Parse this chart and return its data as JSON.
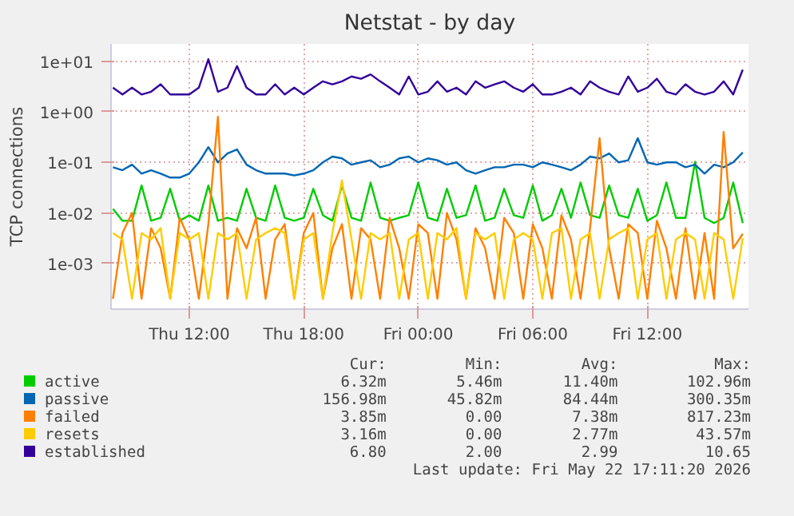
{
  "chart_data": {
    "type": "line",
    "title": "Netstat - by day",
    "ylabel": "TCP connections",
    "log": "y",
    "grid": true,
    "legend": "bottom",
    "xlim": [
      "2026-05-21T07:54",
      "2026-05-22T17:18"
    ],
    "ylim": [
      0.000125,
      22
    ],
    "xticks": [
      {
        "value": "2026-05-21T12:00",
        "label": "Thu 12:00"
      },
      {
        "value": "2026-05-21T18:00",
        "label": "Thu 18:00"
      },
      {
        "value": "2026-05-22T00:00",
        "label": "Fri 00:00"
      },
      {
        "value": "2026-05-22T06:00",
        "label": "Fri 06:00"
      },
      {
        "value": "2026-05-22T12:00",
        "label": "Fri 12:00"
      }
    ],
    "yticks": [
      {
        "value": 0.001,
        "label": "1e-03"
      },
      {
        "value": 0.01,
        "label": "1e-02"
      },
      {
        "value": 0.1,
        "label": "1e-01"
      },
      {
        "value": 1,
        "label": "1e+00"
      },
      {
        "value": 10,
        "label": "1e+01"
      }
    ],
    "x": [
      "2026-05-21T08:00",
      "2026-05-21T08:30",
      "2026-05-21T09:00",
      "2026-05-21T09:30",
      "2026-05-21T10:00",
      "2026-05-21T10:30",
      "2026-05-21T11:00",
      "2026-05-21T11:30",
      "2026-05-21T12:00",
      "2026-05-21T12:30",
      "2026-05-21T13:00",
      "2026-05-21T13:30",
      "2026-05-21T14:00",
      "2026-05-21T14:30",
      "2026-05-21T15:00",
      "2026-05-21T15:30",
      "2026-05-21T16:00",
      "2026-05-21T16:30",
      "2026-05-21T17:00",
      "2026-05-21T17:30",
      "2026-05-21T18:00",
      "2026-05-21T18:30",
      "2026-05-21T19:00",
      "2026-05-21T19:30",
      "2026-05-21T20:00",
      "2026-05-21T20:30",
      "2026-05-21T21:00",
      "2026-05-21T21:30",
      "2026-05-21T22:00",
      "2026-05-21T22:30",
      "2026-05-21T23:00",
      "2026-05-21T23:30",
      "2026-05-22T00:00",
      "2026-05-22T00:30",
      "2026-05-22T01:00",
      "2026-05-22T01:30",
      "2026-05-22T02:00",
      "2026-05-22T02:30",
      "2026-05-22T03:00",
      "2026-05-22T03:30",
      "2026-05-22T04:00",
      "2026-05-22T04:30",
      "2026-05-22T05:00",
      "2026-05-22T05:30",
      "2026-05-22T06:00",
      "2026-05-22T06:30",
      "2026-05-22T07:00",
      "2026-05-22T07:30",
      "2026-05-22T08:00",
      "2026-05-22T08:30",
      "2026-05-22T09:00",
      "2026-05-22T09:30",
      "2026-05-22T10:00",
      "2026-05-22T10:30",
      "2026-05-22T11:00",
      "2026-05-22T11:30",
      "2026-05-22T12:00",
      "2026-05-22T12:30",
      "2026-05-22T13:00",
      "2026-05-22T13:30",
      "2026-05-22T14:00",
      "2026-05-22T14:30",
      "2026-05-22T15:00",
      "2026-05-22T15:30",
      "2026-05-22T16:00",
      "2026-05-22T16:30",
      "2026-05-22T17:00"
    ],
    "series": [
      {
        "name": "active",
        "color": "#00cc00",
        "values": [
          0.012,
          0.007,
          0.007,
          0.035,
          0.007,
          0.008,
          0.03,
          0.007,
          0.009,
          0.007,
          0.035,
          0.007,
          0.008,
          0.007,
          0.03,
          0.008,
          0.007,
          0.035,
          0.008,
          0.007,
          0.008,
          0.03,
          0.009,
          0.007,
          0.035,
          0.008,
          0.007,
          0.04,
          0.008,
          0.007,
          0.008,
          0.009,
          0.04,
          0.008,
          0.007,
          0.03,
          0.008,
          0.009,
          0.035,
          0.007,
          0.008,
          0.03,
          0.009,
          0.008,
          0.035,
          0.007,
          0.009,
          0.03,
          0.008,
          0.04,
          0.009,
          0.008,
          0.035,
          0.009,
          0.008,
          0.03,
          0.007,
          0.009,
          0.04,
          0.008,
          0.008,
          0.103,
          0.008,
          0.0063,
          0.008,
          0.04,
          0.0063
        ]
      },
      {
        "name": "passive",
        "color": "#0066b3",
        "values": [
          0.08,
          0.07,
          0.09,
          0.06,
          0.07,
          0.06,
          0.05,
          0.05,
          0.06,
          0.1,
          0.2,
          0.1,
          0.15,
          0.18,
          0.09,
          0.07,
          0.06,
          0.06,
          0.06,
          0.055,
          0.06,
          0.07,
          0.1,
          0.13,
          0.12,
          0.09,
          0.1,
          0.11,
          0.08,
          0.09,
          0.12,
          0.13,
          0.1,
          0.12,
          0.11,
          0.09,
          0.1,
          0.07,
          0.06,
          0.07,
          0.08,
          0.08,
          0.09,
          0.09,
          0.08,
          0.1,
          0.09,
          0.08,
          0.07,
          0.09,
          0.13,
          0.12,
          0.15,
          0.1,
          0.11,
          0.3,
          0.1,
          0.09,
          0.1,
          0.1,
          0.08,
          0.09,
          0.06,
          0.09,
          0.08,
          0.1,
          0.157
        ]
      },
      {
        "name": "failed",
        "color": "#ff8000",
        "values": [
          0.0002,
          0.004,
          0.01,
          0.0002,
          0.005,
          0.002,
          0.0002,
          0.008,
          0.003,
          0.0002,
          0.006,
          0.8,
          0.0002,
          0.005,
          0.002,
          0.008,
          0.0002,
          0.003,
          0.006,
          0.0002,
          0.004,
          0.01,
          0.0002,
          0.002,
          0.006,
          0.0002,
          0.005,
          0.003,
          0.0002,
          0.008,
          0.002,
          0.0002,
          0.006,
          0.004,
          0.0002,
          0.01,
          0.003,
          0.0002,
          0.005,
          0.002,
          0.0002,
          0.008,
          0.004,
          0.0002,
          0.006,
          0.002,
          0.0002,
          0.009,
          0.003,
          0.0002,
          0.005,
          0.3,
          0.002,
          0.0002,
          0.006,
          0.004,
          0.0002,
          0.007,
          0.002,
          0.0002,
          0.005,
          0.0002,
          0.004,
          0.0002,
          0.4,
          0.002,
          0.00385
        ]
      },
      {
        "name": "resets",
        "color": "#ffcc00",
        "values": [
          0.004,
          0.003,
          0.0002,
          0.004,
          0.003,
          0.005,
          0.0002,
          0.004,
          0.003,
          0.004,
          0.0002,
          0.004,
          0.003,
          0.004,
          0.0002,
          0.003,
          0.004,
          0.005,
          0.004,
          0.0002,
          0.003,
          0.004,
          0.0002,
          0.004,
          0.044,
          0.003,
          0.0002,
          0.004,
          0.003,
          0.004,
          0.0002,
          0.003,
          0.004,
          0.0002,
          0.004,
          0.003,
          0.005,
          0.0002,
          0.004,
          0.003,
          0.004,
          0.0002,
          0.003,
          0.004,
          0.003,
          0.0002,
          0.004,
          0.005,
          0.0002,
          0.003,
          0.004,
          0.0002,
          0.003,
          0.004,
          0.005,
          0.0002,
          0.003,
          0.004,
          0.0002,
          0.003,
          0.004,
          0.003,
          0.0002,
          0.004,
          0.003,
          0.0002,
          0.00316
        ]
      },
      {
        "name": "established",
        "color": "#330099",
        "values": [
          3,
          2.2,
          3,
          2.2,
          2.5,
          3.5,
          2.2,
          2.2,
          2.2,
          3,
          11,
          2.5,
          3,
          8,
          3,
          2.2,
          2.2,
          3.5,
          2.2,
          3,
          2.2,
          3,
          4,
          3.5,
          4,
          5,
          4.5,
          5.5,
          4,
          3,
          2.2,
          5,
          2.2,
          2.5,
          4,
          2.5,
          3,
          2.2,
          4,
          3,
          3.5,
          4,
          3,
          2.5,
          3.5,
          2.2,
          2.2,
          2.5,
          3,
          2.2,
          4,
          3,
          2.5,
          2.2,
          5,
          2.5,
          3,
          4.5,
          2.5,
          2.2,
          3.5,
          2.5,
          2.2,
          2.5,
          4,
          2.2,
          6.8
        ]
      }
    ],
    "annotations": [
      "Cur:",
      "Min:",
      "Avg:",
      "Max:",
      "6.32m",
      "5.46m",
      "11.40m",
      "102.96m",
      "156.98m",
      "45.82m",
      "84.44m",
      "300.35m",
      "3.85m",
      "0.00",
      "7.38m",
      "817.23m",
      "3.16m",
      "0.00",
      "2.77m",
      "43.57m",
      "6.80",
      "2.00",
      "2.99",
      "10.65",
      "Last update: Fri May 22 17:11:20 2026"
    ]
  }
}
